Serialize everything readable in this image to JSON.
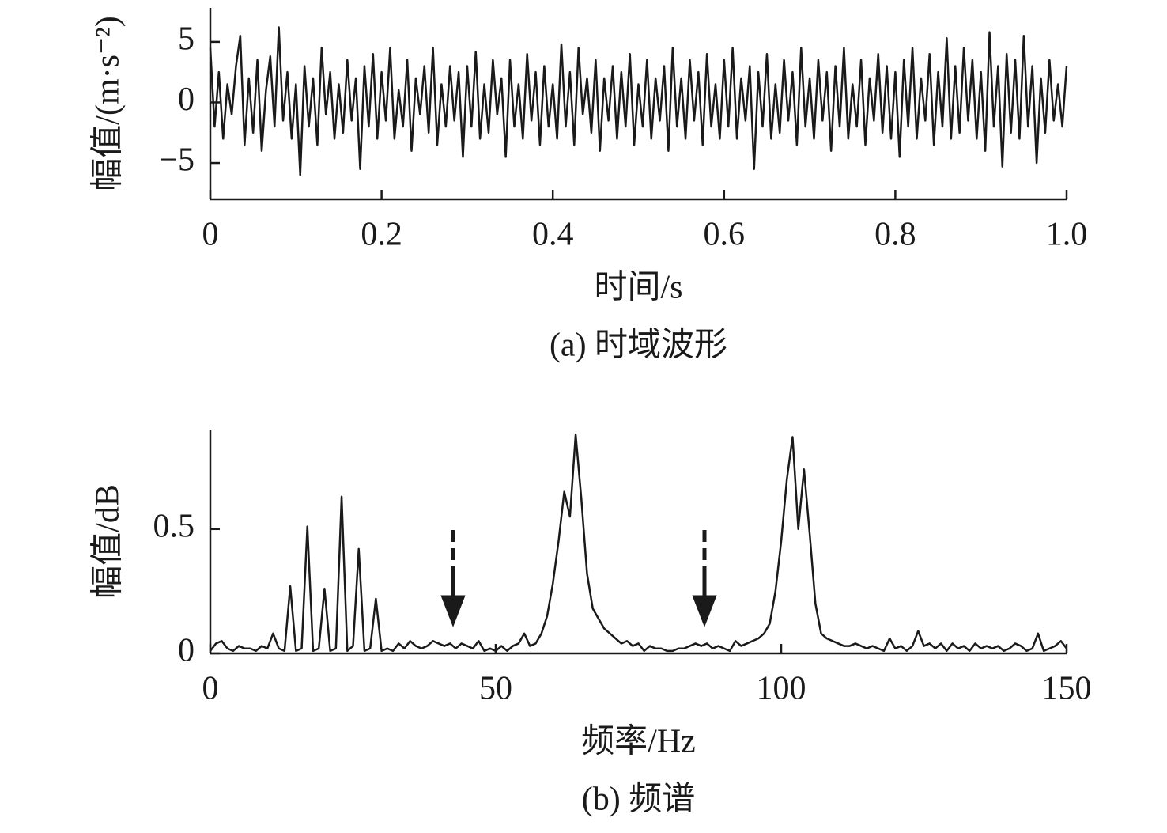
{
  "chart_data": [
    {
      "type": "line",
      "caption": "(a) 时域波形",
      "xlabel": "时间/s",
      "ylabel": "幅值/(m·s⁻²)",
      "color": "#1a1a1a",
      "grid": false,
      "xlim": [
        0,
        1
      ],
      "ylim": [
        -8,
        7.8
      ],
      "xticks": [
        0,
        0.2,
        0.4,
        0.6,
        0.8,
        {
          "value": 1,
          "label": "1.0"
        }
      ],
      "yticks": [
        {
          "value": -5,
          "label": "−5"
        },
        0,
        5
      ],
      "x": [
        0,
        0.005,
        0.01,
        0.015,
        0.02,
        0.025,
        0.03,
        0.035,
        0.04,
        0.045,
        0.05,
        0.055,
        0.06,
        0.065,
        0.07,
        0.075,
        0.08,
        0.085,
        0.09,
        0.095,
        0.1,
        0.105,
        0.11,
        0.115,
        0.12,
        0.125,
        0.13,
        0.135,
        0.14,
        0.145,
        0.15,
        0.155,
        0.16,
        0.165,
        0.17,
        0.175,
        0.18,
        0.185,
        0.19,
        0.195,
        0.2,
        0.205,
        0.21,
        0.215,
        0.22,
        0.225,
        0.23,
        0.235,
        0.24,
        0.245,
        0.25,
        0.255,
        0.26,
        0.265,
        0.27,
        0.275,
        0.28,
        0.285,
        0.29,
        0.295,
        0.3,
        0.305,
        0.31,
        0.315,
        0.32,
        0.325,
        0.33,
        0.335,
        0.34,
        0.345,
        0.35,
        0.355,
        0.36,
        0.365,
        0.37,
        0.375,
        0.38,
        0.385,
        0.39,
        0.395,
        0.4,
        0.405,
        0.41,
        0.415,
        0.42,
        0.425,
        0.43,
        0.435,
        0.44,
        0.445,
        0.45,
        0.455,
        0.46,
        0.465,
        0.47,
        0.475,
        0.48,
        0.485,
        0.49,
        0.495,
        0.5,
        0.505,
        0.51,
        0.515,
        0.52,
        0.525,
        0.53,
        0.535,
        0.54,
        0.545,
        0.55,
        0.555,
        0.56,
        0.565,
        0.57,
        0.575,
        0.58,
        0.585,
        0.59,
        0.595,
        0.6,
        0.605,
        0.61,
        0.615,
        0.62,
        0.625,
        0.63,
        0.635,
        0.64,
        0.645,
        0.65,
        0.655,
        0.66,
        0.665,
        0.67,
        0.675,
        0.68,
        0.685,
        0.69,
        0.695,
        0.7,
        0.705,
        0.71,
        0.715,
        0.72,
        0.725,
        0.73,
        0.735,
        0.74,
        0.745,
        0.75,
        0.755,
        0.76,
        0.765,
        0.77,
        0.775,
        0.78,
        0.785,
        0.79,
        0.795,
        0.8,
        0.805,
        0.81,
        0.815,
        0.82,
        0.825,
        0.83,
        0.835,
        0.84,
        0.845,
        0.85,
        0.855,
        0.86,
        0.865,
        0.87,
        0.875,
        0.88,
        0.885,
        0.89,
        0.895,
        0.9,
        0.905,
        0.91,
        0.915,
        0.92,
        0.925,
        0.93,
        0.935,
        0.94,
        0.945,
        0.95,
        0.955,
        0.96,
        0.965,
        0.97,
        0.975,
        0.98,
        0.985,
        0.99,
        0.995,
        1
      ],
      "values": [
        4.5,
        -2,
        2.5,
        -3,
        1.5,
        -1,
        3,
        5.5,
        -3.5,
        2,
        -2.5,
        3.5,
        -4,
        1,
        3.8,
        -2,
        6.2,
        -1.5,
        2.5,
        -3,
        1.5,
        -6,
        3,
        -2,
        2,
        -3.5,
        4.5,
        -1,
        2.5,
        -3,
        1.5,
        -2.5,
        3.5,
        -1.5,
        2,
        -5.5,
        3,
        -2,
        4,
        -3,
        2.5,
        -1.5,
        4.5,
        -3,
        1,
        -2,
        3.5,
        -4,
        2,
        -1,
        3,
        -2.5,
        4.5,
        -3.5,
        1.5,
        -2,
        3,
        -1.5,
        2.5,
        -4.5,
        3,
        -2,
        4.2,
        -3,
        1.5,
        -2.5,
        3.5,
        -1,
        2,
        -4.5,
        3.5,
        -2,
        1.5,
        -3,
        4,
        -1.5,
        2.5,
        -3.5,
        3,
        -2,
        1.5,
        -3,
        4.8,
        -2,
        2.5,
        -3.5,
        4.5,
        -1,
        2,
        -2.5,
        3.5,
        -4,
        2,
        -1.5,
        3,
        -3,
        2.5,
        -2,
        4,
        -3.5,
        1.5,
        -2,
        3.5,
        -3,
        2,
        -1.5,
        3,
        -4,
        4.5,
        -2,
        2,
        -3,
        3.5,
        -1.5,
        2.5,
        -3.5,
        4,
        -2,
        1.5,
        -3,
        3.5,
        -2,
        4.5,
        -3,
        2,
        -1.5,
        3,
        -5.5,
        2.5,
        -2,
        4,
        -3,
        1.5,
        -2.5,
        3.5,
        -1.5,
        2.5,
        -3.5,
        4.5,
        -2,
        2,
        -3,
        3.5,
        -1.5,
        2.5,
        -4,
        3,
        -2,
        4.5,
        -3,
        1.5,
        -2,
        3.5,
        -3.5,
        2,
        -1.5,
        4,
        -2.5,
        3,
        -3,
        2.5,
        -4.5,
        3.5,
        -2,
        4.5,
        -3,
        2,
        -1.5,
        4,
        -3.5,
        2.5,
        -2,
        5.3,
        -3,
        3,
        -2.5,
        4.5,
        -1.5,
        3.5,
        -3,
        2.5,
        -4,
        5.8,
        -2,
        3,
        -5.3,
        4,
        -2.5,
        3.5,
        -3,
        5.5,
        -2,
        3,
        -5,
        2,
        -2.5,
        3.5,
        -1.5,
        1.5,
        -2,
        3
      ]
    },
    {
      "type": "line",
      "caption": "(b) 频谱",
      "xlabel": "频率/Hz",
      "ylabel": "幅值/dB",
      "color": "#1a1a1a",
      "grid": false,
      "xlim": [
        0,
        150
      ],
      "ylim": [
        0,
        0.9
      ],
      "xticks": [
        0,
        50,
        100,
        150
      ],
      "yticks": [
        0,
        0.5
      ],
      "x": [
        0,
        1,
        2,
        3,
        4,
        5,
        6,
        7,
        8,
        9,
        10,
        11,
        12,
        13,
        14,
        15,
        16,
        17,
        18,
        19,
        20,
        21,
        22,
        23,
        24,
        25,
        26,
        27,
        28,
        29,
        30,
        31,
        32,
        33,
        34,
        35,
        36,
        37,
        38,
        39,
        40,
        41,
        42,
        43,
        44,
        45,
        46,
        47,
        48,
        49,
        50,
        51,
        52,
        53,
        54,
        55,
        56,
        57,
        58,
        59,
        60,
        61,
        62,
        63,
        64,
        65,
        66,
        67,
        68,
        69,
        70,
        71,
        72,
        73,
        74,
        75,
        76,
        77,
        78,
        79,
        80,
        81,
        82,
        83,
        84,
        85,
        86,
        87,
        88,
        89,
        90,
        91,
        92,
        93,
        94,
        95,
        96,
        97,
        98,
        99,
        100,
        101,
        102,
        103,
        104,
        105,
        106,
        107,
        108,
        109,
        110,
        111,
        112,
        113,
        114,
        115,
        116,
        117,
        118,
        119,
        120,
        121,
        122,
        123,
        124,
        125,
        126,
        127,
        128,
        129,
        130,
        131,
        132,
        133,
        134,
        135,
        136,
        137,
        138,
        139,
        140,
        141,
        142,
        143,
        144,
        145,
        146,
        147,
        148,
        149,
        150
      ],
      "values": [
        0.01,
        0.04,
        0.05,
        0.02,
        0.01,
        0.03,
        0.02,
        0.02,
        0.01,
        0.03,
        0.02,
        0.08,
        0.02,
        0.01,
        0.27,
        0.01,
        0.02,
        0.51,
        0.01,
        0.02,
        0.26,
        0.01,
        0.02,
        0.63,
        0.01,
        0.03,
        0.42,
        0.01,
        0.02,
        0.22,
        0.01,
        0.02,
        0.01,
        0.04,
        0.02,
        0.05,
        0.03,
        0.02,
        0.03,
        0.05,
        0.04,
        0.03,
        0.04,
        0.02,
        0.04,
        0.03,
        0.02,
        0.05,
        0.01,
        0.02,
        0.01,
        0.03,
        0.01,
        0.03,
        0.04,
        0.08,
        0.03,
        0.04,
        0.08,
        0.15,
        0.28,
        0.45,
        0.65,
        0.55,
        0.88,
        0.62,
        0.32,
        0.18,
        0.14,
        0.1,
        0.08,
        0.06,
        0.04,
        0.05,
        0.03,
        0.04,
        0.01,
        0.03,
        0.02,
        0.02,
        0.01,
        0.01,
        0.02,
        0.02,
        0.03,
        0.04,
        0.03,
        0.04,
        0.02,
        0.03,
        0.02,
        0.01,
        0.05,
        0.03,
        0.04,
        0.05,
        0.06,
        0.08,
        0.12,
        0.25,
        0.45,
        0.7,
        0.87,
        0.5,
        0.74,
        0.48,
        0.2,
        0.08,
        0.06,
        0.05,
        0.04,
        0.03,
        0.03,
        0.04,
        0.03,
        0.02,
        0.03,
        0.02,
        0.01,
        0.06,
        0.02,
        0.03,
        0.01,
        0.03,
        0.09,
        0.03,
        0.04,
        0.02,
        0.04,
        0.01,
        0.04,
        0.02,
        0.03,
        0.01,
        0.04,
        0.02,
        0.03,
        0.02,
        0.03,
        0.01,
        0.02,
        0.04,
        0.03,
        0.01,
        0.02,
        0.08,
        0.01,
        0.02,
        0.03,
        0.05,
        0.02
      ]
    }
  ]
}
